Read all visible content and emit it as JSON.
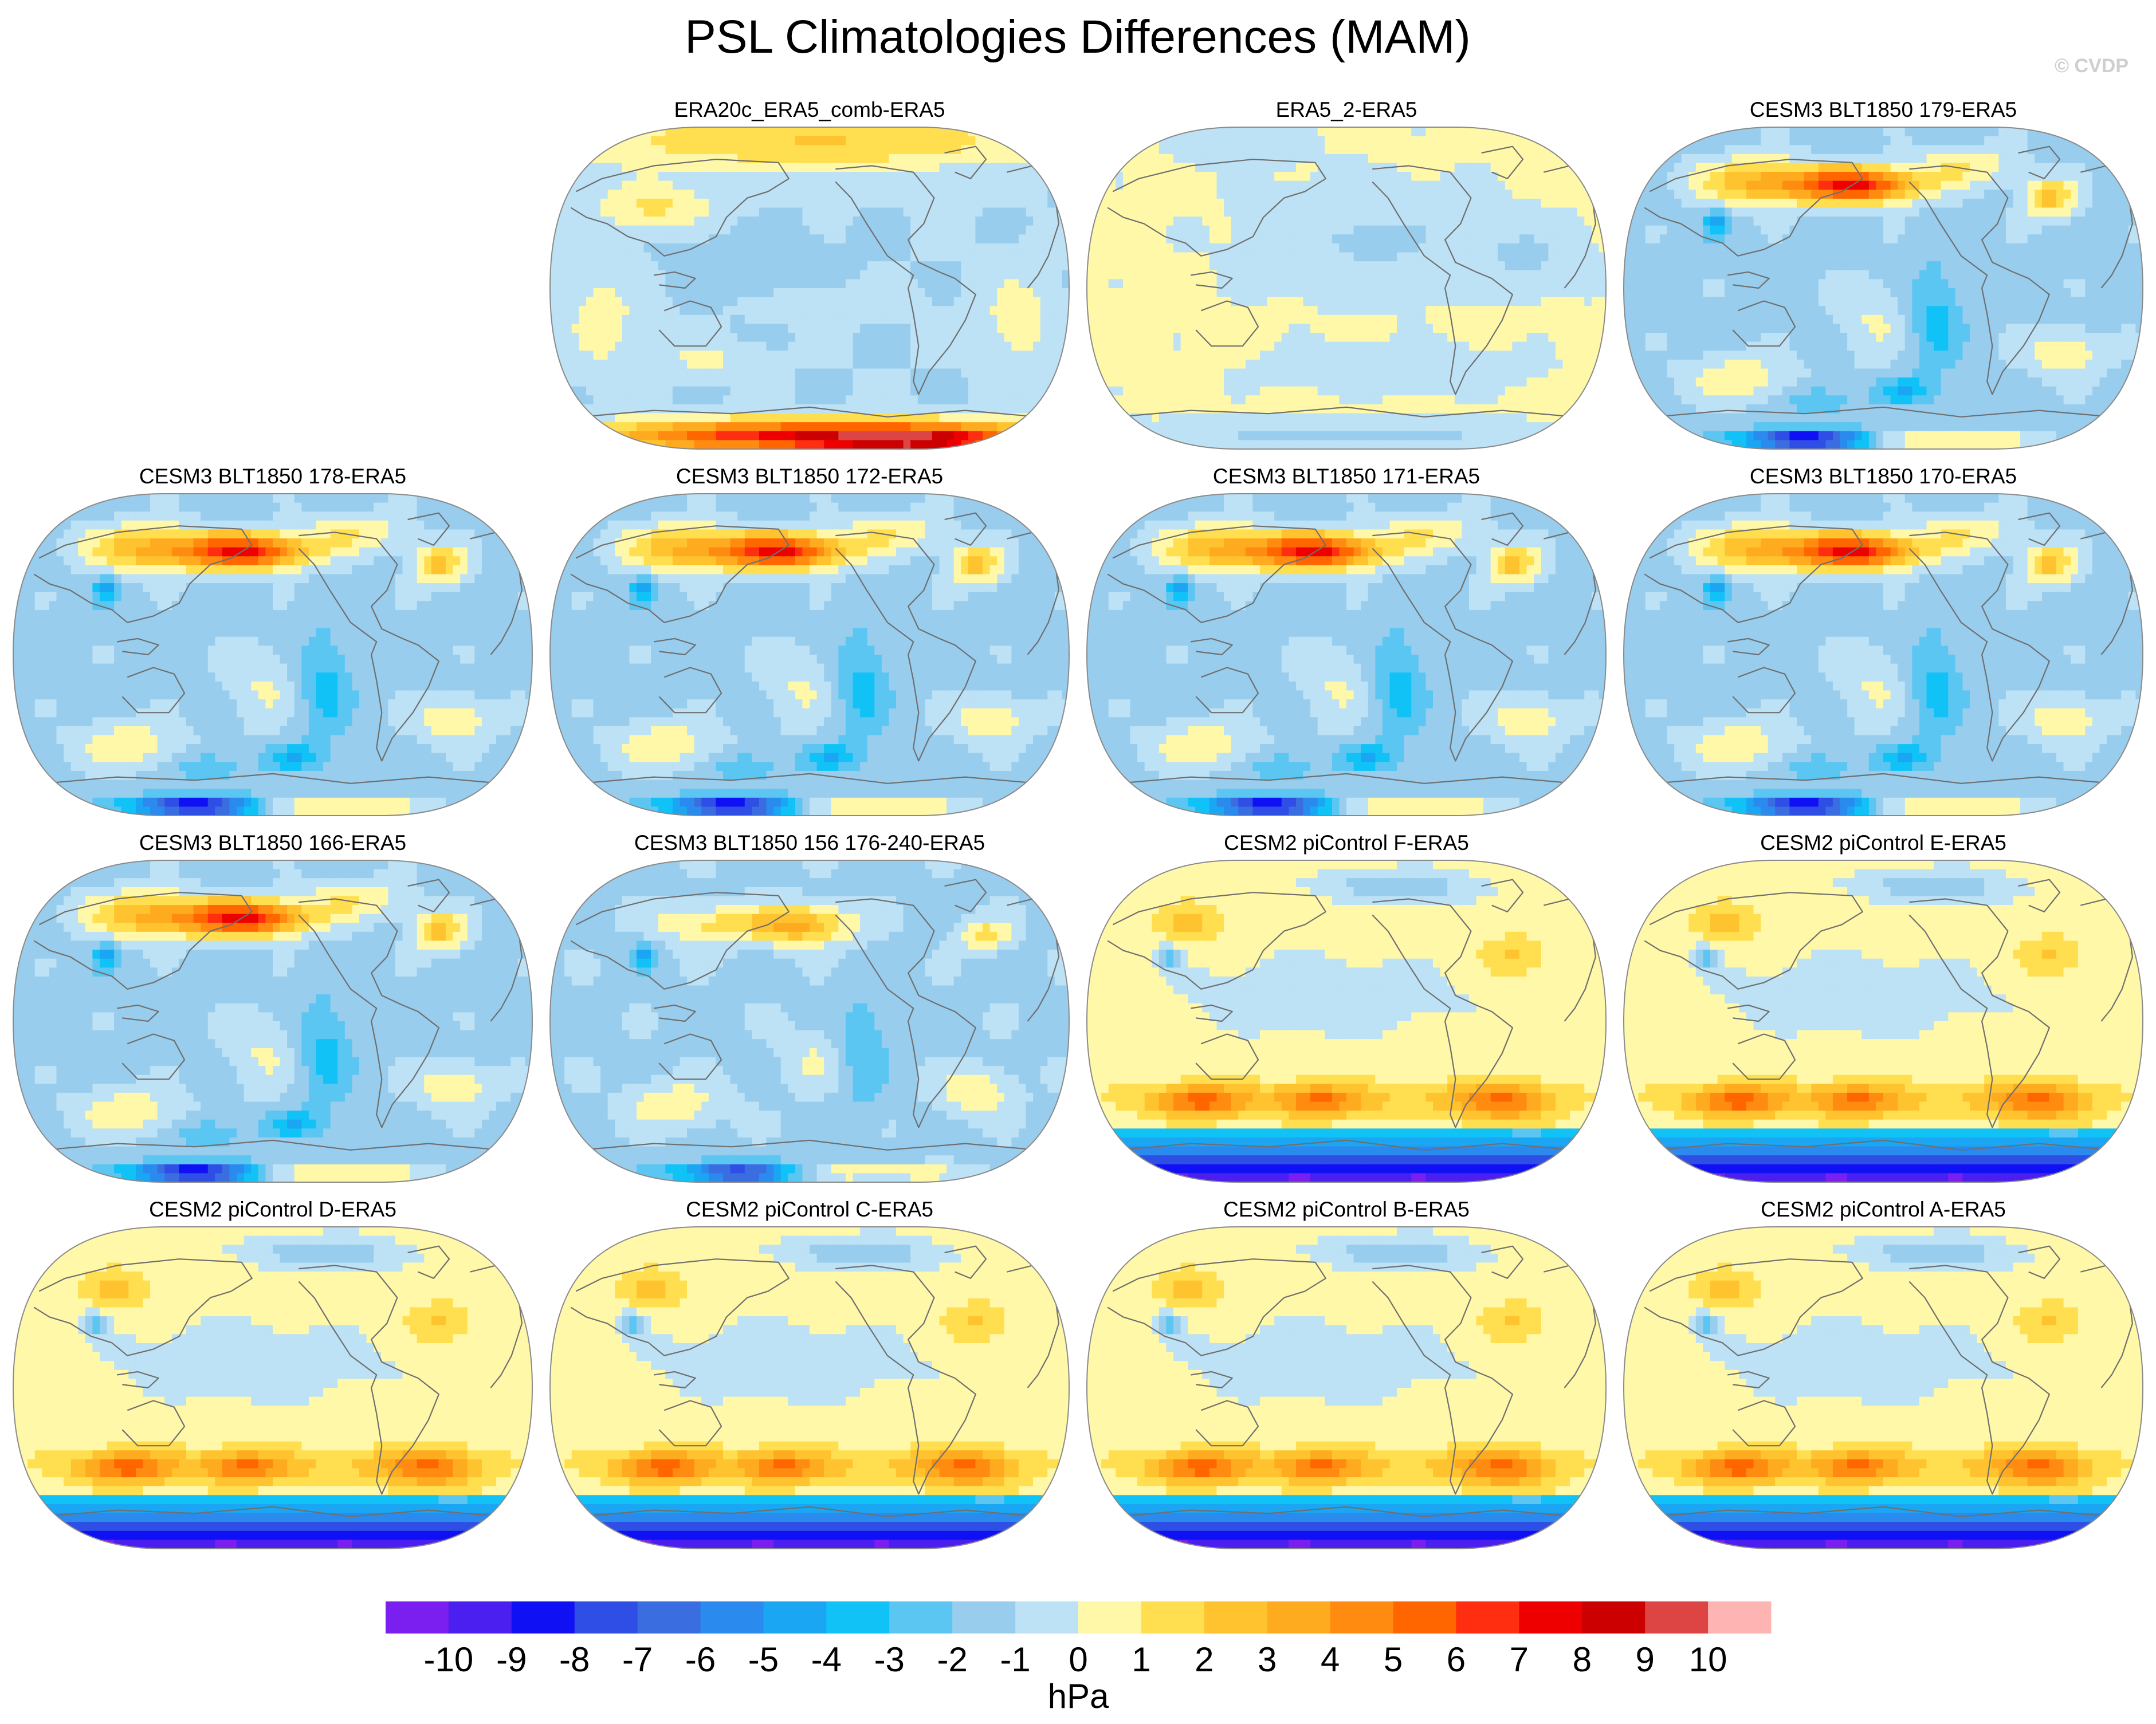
{
  "chart_data": {
    "type": "heatmap",
    "title": "PSL Climatologies Differences (MAM)",
    "watermark": "© CVDP",
    "projection": "robinson",
    "panels": [
      {
        "title": "ERA20c_ERA5_comb-ERA5",
        "row": 0,
        "col": 1,
        "pattern": "era20c"
      },
      {
        "title": "ERA5_2-ERA5",
        "row": 0,
        "col": 2,
        "pattern": "era5"
      },
      {
        "title": "CESM3 BLT1850 179-ERA5",
        "row": 0,
        "col": 3,
        "pattern": "cesm3"
      },
      {
        "title": "CESM3 BLT1850 178-ERA5",
        "row": 1,
        "col": 0,
        "pattern": "cesm3"
      },
      {
        "title": "CESM3 BLT1850 172-ERA5",
        "row": 1,
        "col": 1,
        "pattern": "cesm3"
      },
      {
        "title": "CESM3 BLT1850 171-ERA5",
        "row": 1,
        "col": 2,
        "pattern": "cesm3"
      },
      {
        "title": "CESM3 BLT1850 170-ERA5",
        "row": 1,
        "col": 3,
        "pattern": "cesm3"
      },
      {
        "title": "CESM3 BLT1850 166-ERA5",
        "row": 2,
        "col": 0,
        "pattern": "cesm3"
      },
      {
        "title": "CESM3 BLT1850 156 176-240-ERA5",
        "row": 2,
        "col": 1,
        "pattern": "cesm3weak"
      },
      {
        "title": "CESM2 piControl F-ERA5",
        "row": 2,
        "col": 2,
        "pattern": "cesm2"
      },
      {
        "title": "CESM2 piControl E-ERA5",
        "row": 2,
        "col": 3,
        "pattern": "cesm2"
      },
      {
        "title": "CESM2 piControl D-ERA5",
        "row": 3,
        "col": 0,
        "pattern": "cesm2"
      },
      {
        "title": "CESM2 piControl C-ERA5",
        "row": 3,
        "col": 1,
        "pattern": "cesm2"
      },
      {
        "title": "CESM2 piControl B-ERA5",
        "row": 3,
        "col": 2,
        "pattern": "cesm2"
      },
      {
        "title": "CESM2 piControl A-ERA5",
        "row": 3,
        "col": 3,
        "pattern": "cesm2"
      }
    ],
    "colorbar": {
      "units": "hPa",
      "levels": [
        -10,
        -9,
        -8,
        -7,
        -6,
        -5,
        -4,
        -3,
        -2,
        -1,
        0,
        1,
        2,
        3,
        4,
        5,
        6,
        7,
        8,
        9,
        10
      ],
      "tick_labels": [
        "-10",
        "-9",
        "-8",
        "-7",
        "-6",
        "-5",
        "-4",
        "-3",
        "-2",
        "-1",
        "0",
        "1",
        "2",
        "3",
        "4",
        "5",
        "6",
        "7",
        "8",
        "9",
        "10"
      ],
      "colors": [
        "#7a1ff0",
        "#4b1ff0",
        "#1010f4",
        "#2e4ee6",
        "#3a6ee0",
        "#2a8aee",
        "#1aa6f2",
        "#10c2f6",
        "#5cc6f2",
        "#98cdee",
        "#bde1f5",
        "#fff8a8",
        "#ffdf50",
        "#ffc330",
        "#ffab20",
        "#ff8c10",
        "#ff6600",
        "#ff2e10",
        "#ee0000",
        "#cc0000",
        "#dd4444",
        "#ffb4b4"
      ]
    }
  }
}
